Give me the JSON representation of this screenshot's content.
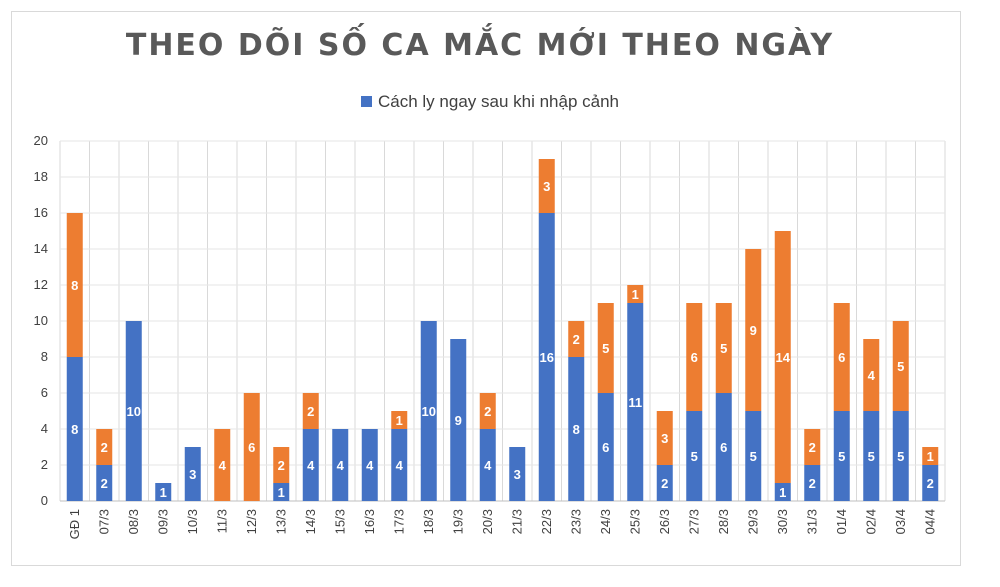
{
  "chart_data": {
    "type": "bar",
    "stacked": true,
    "title": "THEO DÕI SỐ CA MẮC MỚI THEO NGÀY",
    "legend": {
      "position": "top",
      "entries": [
        "Cách ly ngay sau khi nhập cảnh"
      ]
    },
    "ylim": [
      0,
      20
    ],
    "yticks": [
      0,
      2,
      4,
      6,
      8,
      10,
      12,
      14,
      16,
      18,
      20
    ],
    "grid": true,
    "categories": [
      "GĐ 1",
      "07/3",
      "08/3",
      "09/3",
      "10/3",
      "11/3",
      "12/3",
      "13/3",
      "14/3",
      "15/3",
      "16/3",
      "17/3",
      "18/3",
      "19/3",
      "20/3",
      "21/3",
      "22/3",
      "23/3",
      "24/3",
      "25/3",
      "26/3",
      "27/3",
      "28/3",
      "29/3",
      "30/3",
      "31/3",
      "01/4",
      "02/4",
      "03/4",
      "04/4"
    ],
    "series": [
      {
        "name": "Cách ly ngay sau khi nhập cảnh",
        "color": "#4472c4",
        "values": [
          8,
          2,
          10,
          1,
          3,
          0,
          0,
          1,
          4,
          4,
          4,
          4,
          10,
          9,
          4,
          3,
          16,
          8,
          6,
          11,
          2,
          5,
          6,
          5,
          1,
          2,
          5,
          5,
          5,
          2
        ],
        "labels": [
          "8",
          "2",
          "10",
          "1",
          "3",
          "0",
          "0",
          "1",
          "4",
          "4",
          "4",
          "4",
          "10",
          "9",
          "4",
          "3",
          "16",
          "8",
          "6",
          "11",
          "2",
          "5",
          "6",
          "5",
          "1",
          "2",
          "5",
          "5",
          "5",
          "2"
        ]
      },
      {
        "color": "#ed7d31",
        "values": [
          8,
          2,
          0,
          0,
          0,
          4,
          6,
          2,
          2,
          0,
          0,
          1,
          0,
          0,
          2,
          0,
          3,
          2,
          5,
          1,
          3,
          6,
          5,
          9,
          14,
          2,
          6,
          4,
          5,
          1
        ],
        "labels": [
          "8",
          "2",
          "0",
          "0",
          "0",
          "4",
          "6",
          "2",
          "2",
          "0",
          "0",
          "1",
          "0",
          "0",
          "2",
          "0",
          "3",
          "2",
          "5",
          "1",
          "3",
          "6",
          "5",
          "9",
          "14",
          "2",
          "6",
          "4",
          "5",
          "1"
        ]
      }
    ]
  }
}
